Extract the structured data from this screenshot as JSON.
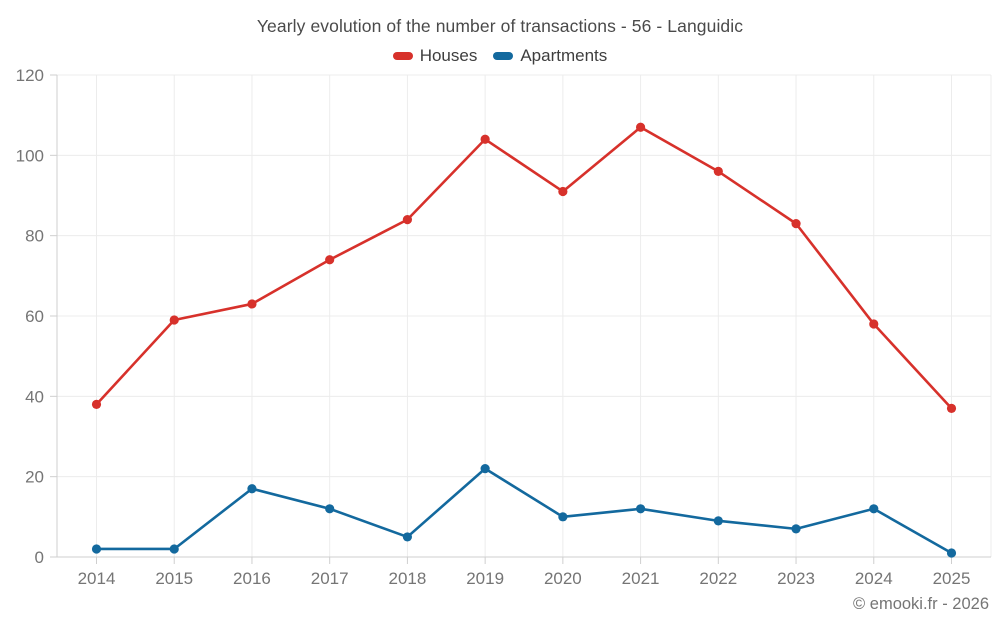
{
  "title": "Yearly evolution of the number of transactions - 56 - Languidic",
  "legend": {
    "items": [
      {
        "label": "Houses",
        "color": "#d7312b"
      },
      {
        "label": "Apartments",
        "color": "#13699e"
      }
    ]
  },
  "footer": {
    "credit": "© emooki.fr - 2026"
  },
  "chart_data": {
    "type": "line",
    "title": "Yearly evolution of the number of transactions - 56 - Languidic",
    "categories": [
      "2014",
      "2015",
      "2016",
      "2017",
      "2018",
      "2019",
      "2020",
      "2021",
      "2022",
      "2023",
      "2024",
      "2025"
    ],
    "series": [
      {
        "name": "Houses",
        "color": "#d7312b",
        "values": [
          38,
          59,
          63,
          74,
          84,
          104,
          91,
          107,
          96,
          83,
          58,
          37
        ]
      },
      {
        "name": "Apartments",
        "color": "#13699e",
        "values": [
          2,
          2,
          17,
          12,
          5,
          22,
          10,
          12,
          9,
          7,
          12,
          1
        ]
      }
    ],
    "xlabel": "",
    "ylabel": "",
    "ylim": [
      0,
      120
    ],
    "yticks": [
      0,
      20,
      40,
      60,
      80,
      100,
      120
    ],
    "grid": true,
    "legend_position": "top"
  }
}
